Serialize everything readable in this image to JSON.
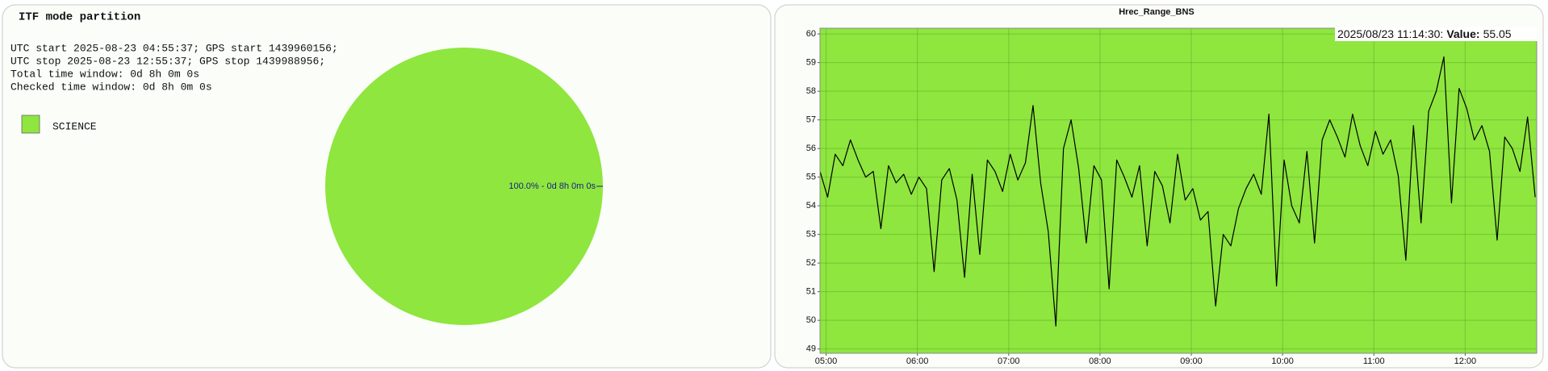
{
  "chart_data": [
    {
      "type": "pie",
      "title": "ITF mode partition",
      "info_lines": [
        "UTC start 2025-08-23 04:55:37; GPS start 1439960156;",
        "UTC stop 2025-08-23 12:55:37; GPS stop 1439988956;",
        "Total time window: 0d 8h 0m 0s",
        "Checked time window: 0d 8h 0m 0s"
      ],
      "categories": [
        "SCIENCE"
      ],
      "values": [
        100
      ],
      "value_labels": [
        "100.0% - 0d 8h 0m 0s"
      ],
      "colors": [
        "#8ee63e"
      ]
    },
    {
      "type": "line",
      "title": "Hrec_Range_BNS",
      "x": [
        "04:56",
        "05:01",
        "05:06",
        "05:11",
        "05:16",
        "05:21",
        "05:26",
        "05:31",
        "05:36",
        "05:41",
        "05:46",
        "05:51",
        "05:56",
        "06:01",
        "06:06",
        "06:11",
        "06:16",
        "06:21",
        "06:26",
        "06:31",
        "06:36",
        "06:41",
        "06:46",
        "06:51",
        "06:56",
        "07:01",
        "07:06",
        "07:11",
        "07:16",
        "07:21",
        "07:26",
        "07:31",
        "07:36",
        "07:41",
        "07:46",
        "07:51",
        "07:56",
        "08:01",
        "08:06",
        "08:11",
        "08:16",
        "08:21",
        "08:26",
        "08:31",
        "08:36",
        "08:41",
        "08:46",
        "08:51",
        "08:56",
        "09:01",
        "09:06",
        "09:11",
        "09:16",
        "09:21",
        "09:26",
        "09:31",
        "09:36",
        "09:41",
        "09:46",
        "09:51",
        "09:56",
        "10:01",
        "10:06",
        "10:11",
        "10:16",
        "10:21",
        "10:26",
        "10:31",
        "10:36",
        "10:41",
        "10:46",
        "10:51",
        "10:56",
        "11:01",
        "11:06",
        "11:11",
        "11:16",
        "11:21",
        "11:26",
        "11:31",
        "11:36",
        "11:41",
        "11:46",
        "11:51",
        "11:56",
        "12:01",
        "12:06",
        "12:11",
        "12:16",
        "12:21",
        "12:26",
        "12:31",
        "12:36",
        "12:41",
        "12:46"
      ],
      "values": [
        55.2,
        54.3,
        55.8,
        55.4,
        56.3,
        55.6,
        55.0,
        55.2,
        53.2,
        55.4,
        54.8,
        55.1,
        54.4,
        55.0,
        54.6,
        51.7,
        54.9,
        55.3,
        54.2,
        51.5,
        55.1,
        52.3,
        55.6,
        55.2,
        54.5,
        55.8,
        54.9,
        55.5,
        57.5,
        54.8,
        53.1,
        49.8,
        56.0,
        57.0,
        55.3,
        52.7,
        55.4,
        54.9,
        51.1,
        55.6,
        55.0,
        54.3,
        55.4,
        52.6,
        55.2,
        54.7,
        53.4,
        55.8,
        54.2,
        54.6,
        53.5,
        53.8,
        50.5,
        53.0,
        52.6,
        53.9,
        54.6,
        55.1,
        54.4,
        57.2,
        51.2,
        55.6,
        54.0,
        53.4,
        55.9,
        52.7,
        56.3,
        57.0,
        56.4,
        55.7,
        57.2,
        56.1,
        55.4,
        56.6,
        55.8,
        56.3,
        55.05,
        52.1,
        56.8,
        53.4,
        57.3,
        58.0,
        59.2,
        54.1,
        58.1,
        57.4,
        56.3,
        56.8,
        55.9,
        52.8,
        56.4,
        56.0,
        55.2,
        57.1,
        54.3
      ],
      "color": "#000000",
      "background": "#8ee63e",
      "xlim": [
        "04:56",
        "12:47"
      ],
      "xticks": [
        "05:00",
        "06:00",
        "07:00",
        "08:00",
        "09:00",
        "10:00",
        "11:00",
        "12:00"
      ],
      "ylim": [
        48.85,
        60.2
      ],
      "yticks": [
        49,
        50,
        51,
        52,
        53,
        54,
        55,
        56,
        57,
        58,
        59,
        60
      ],
      "grid": true,
      "annotation": {
        "time": "2025/08/23 11:14:30:",
        "label": "Value:",
        "value": 55.05
      }
    }
  ]
}
